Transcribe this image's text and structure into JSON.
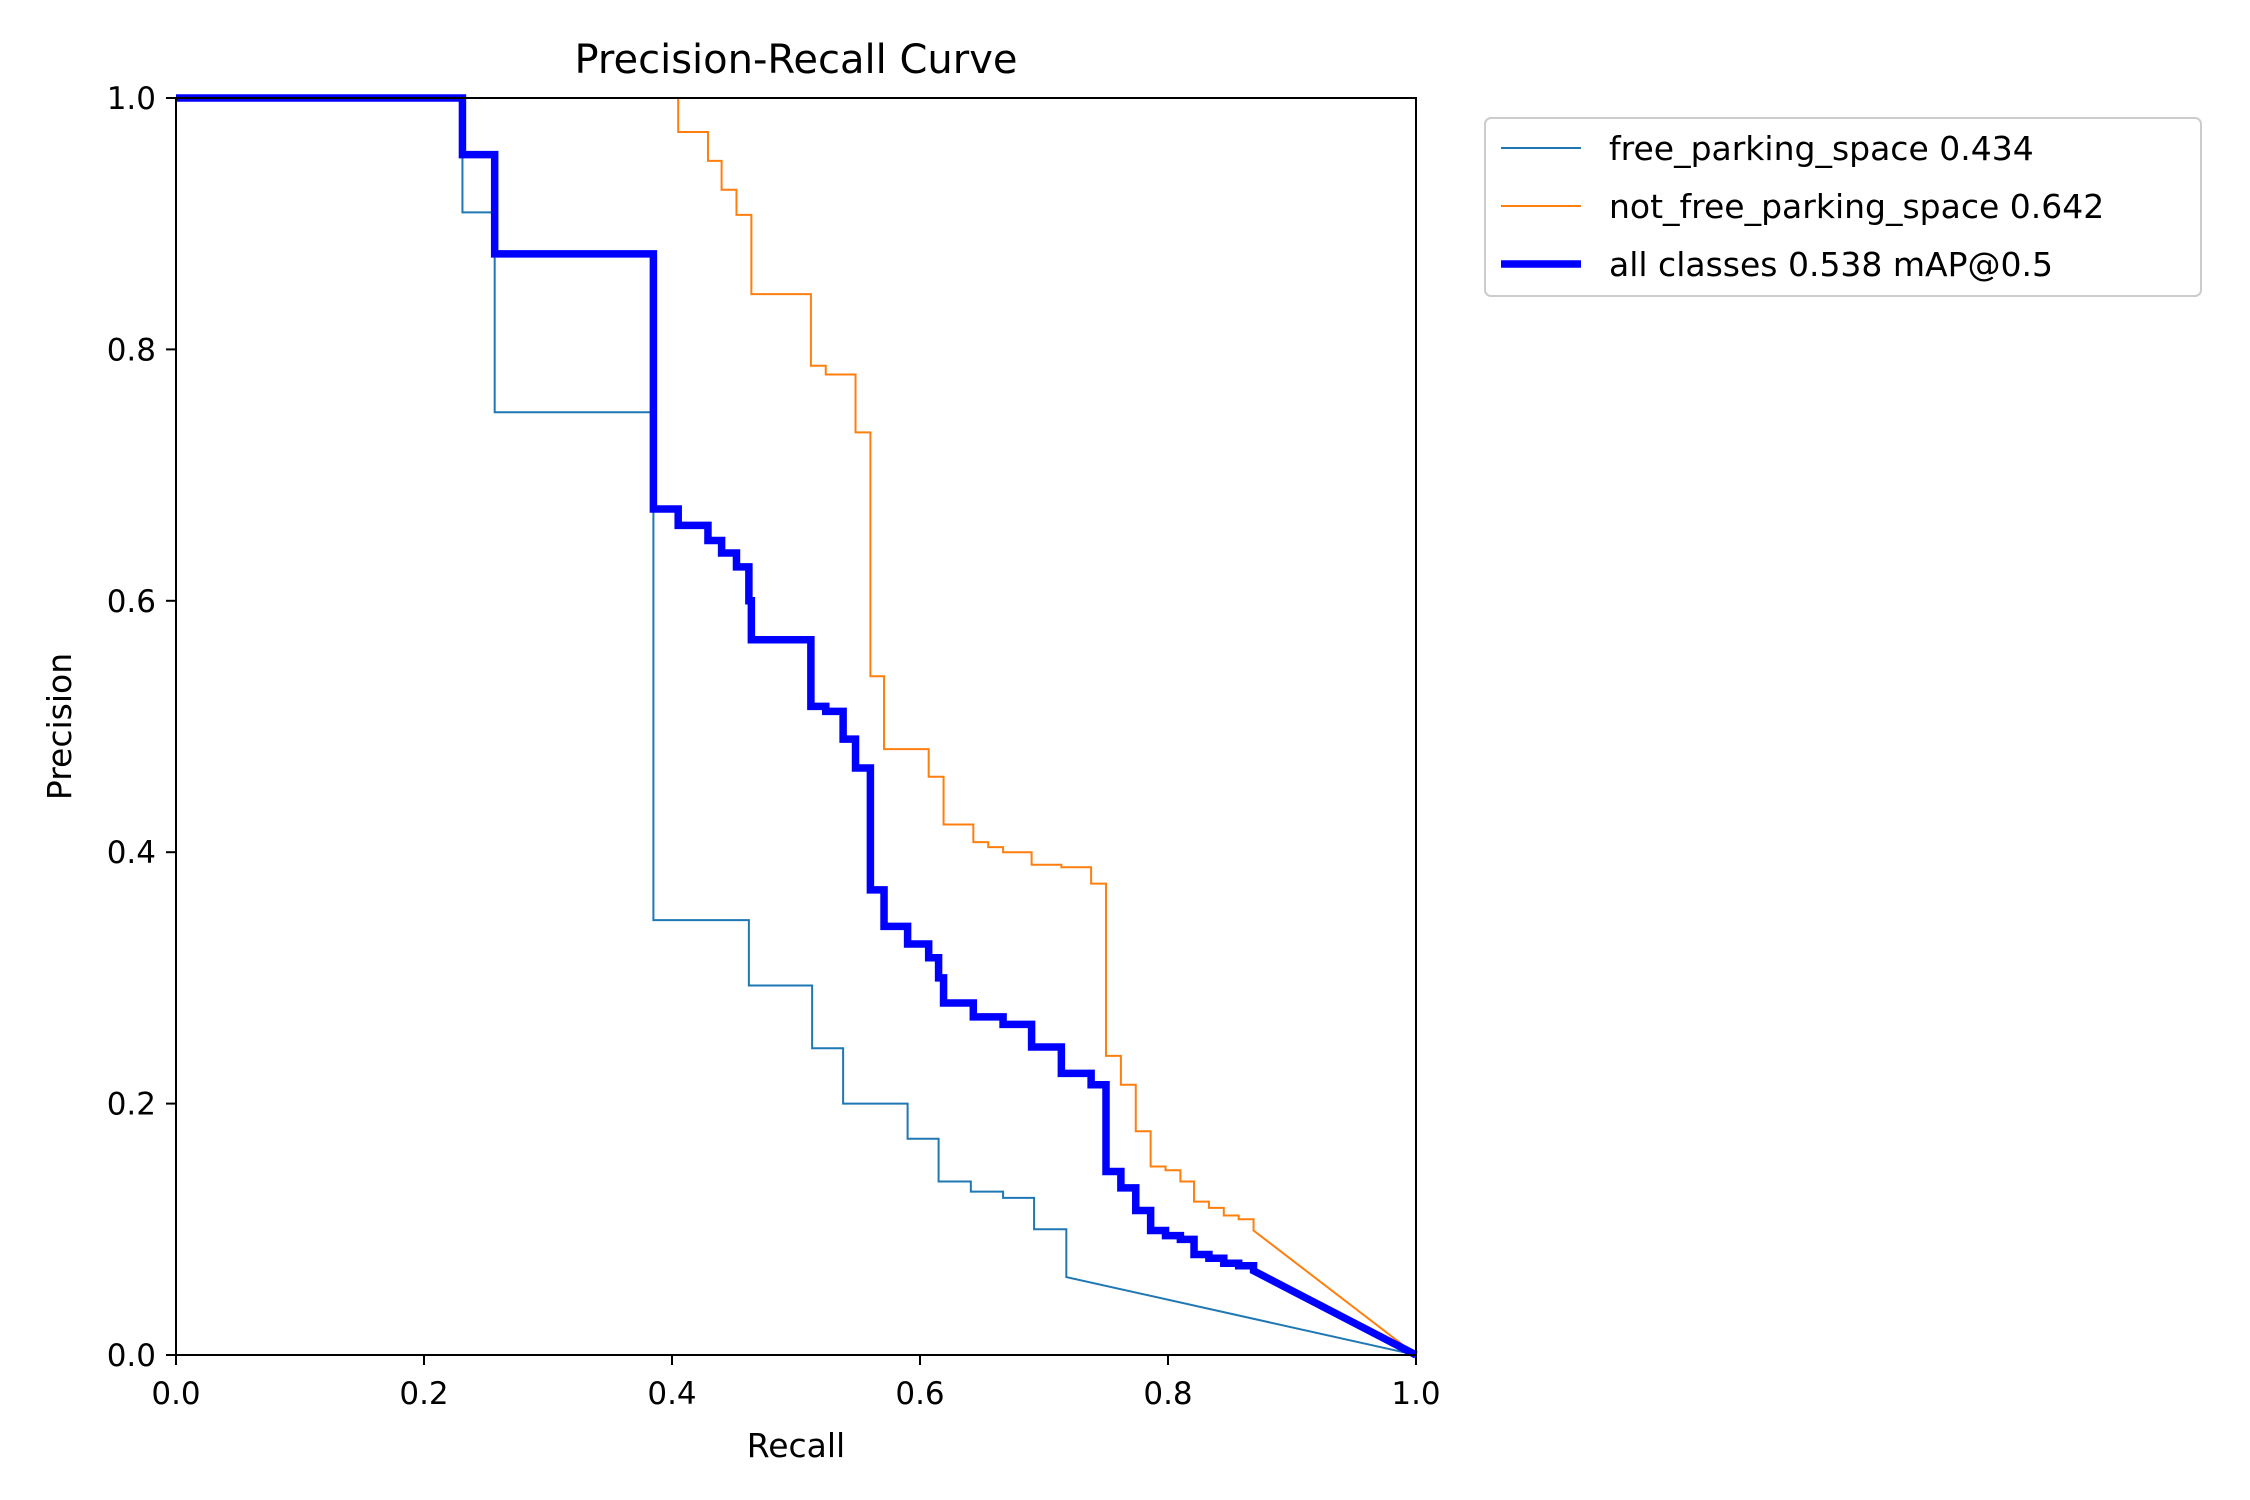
{
  "chart_data": {
    "type": "line",
    "title": "Precision-Recall Curve",
    "xlabel": "Recall",
    "ylabel": "Precision",
    "xlim": [
      0,
      1
    ],
    "ylim": [
      0,
      1
    ],
    "xticks": [
      "0.0",
      "0.2",
      "0.4",
      "0.6",
      "0.8",
      "1.0"
    ],
    "yticks": [
      "0.0",
      "0.2",
      "0.4",
      "0.6",
      "0.8",
      "1.0"
    ],
    "grid": false,
    "legend_position": "outside-top-right",
    "series": [
      {
        "name": "free_parking_space 0.434",
        "color": "#1f77b4",
        "width": "thin",
        "step": true,
        "points": [
          [
            0,
            1.0
          ],
          [
            0.231,
            1.0
          ],
          [
            0.231,
            0.909
          ],
          [
            0.257,
            0.909
          ],
          [
            0.257,
            0.75
          ],
          [
            0.385,
            0.75
          ],
          [
            0.385,
            0.346
          ],
          [
            0.462,
            0.346
          ],
          [
            0.462,
            0.294
          ],
          [
            0.513,
            0.294
          ],
          [
            0.513,
            0.244
          ],
          [
            0.538,
            0.244
          ],
          [
            0.538,
            0.2
          ],
          [
            0.59,
            0.2
          ],
          [
            0.59,
            0.172
          ],
          [
            0.615,
            0.172
          ],
          [
            0.615,
            0.138
          ],
          [
            0.641,
            0.138
          ],
          [
            0.641,
            0.13
          ],
          [
            0.667,
            0.13
          ],
          [
            0.667,
            0.125
          ],
          [
            0.692,
            0.125
          ],
          [
            0.692,
            0.1
          ],
          [
            0.718,
            0.1
          ],
          [
            0.718,
            0.062
          ],
          [
            1.0,
            0.0
          ]
        ]
      },
      {
        "name": "not_free_parking_space 0.642",
        "color": "#ff7f0e",
        "width": "thin",
        "step": true,
        "points": [
          [
            0.405,
            1.0
          ],
          [
            0.405,
            0.973
          ],
          [
            0.429,
            0.973
          ],
          [
            0.429,
            0.95
          ],
          [
            0.44,
            0.95
          ],
          [
            0.44,
            0.927
          ],
          [
            0.452,
            0.927
          ],
          [
            0.452,
            0.907
          ],
          [
            0.464,
            0.907
          ],
          [
            0.464,
            0.844
          ],
          [
            0.512,
            0.844
          ],
          [
            0.512,
            0.787
          ],
          [
            0.524,
            0.787
          ],
          [
            0.524,
            0.78
          ],
          [
            0.548,
            0.78
          ],
          [
            0.548,
            0.734
          ],
          [
            0.56,
            0.734
          ],
          [
            0.56,
            0.54
          ],
          [
            0.571,
            0.54
          ],
          [
            0.571,
            0.482
          ],
          [
            0.607,
            0.482
          ],
          [
            0.607,
            0.46
          ],
          [
            0.619,
            0.46
          ],
          [
            0.619,
            0.422
          ],
          [
            0.643,
            0.422
          ],
          [
            0.643,
            0.408
          ],
          [
            0.655,
            0.408
          ],
          [
            0.655,
            0.404
          ],
          [
            0.667,
            0.404
          ],
          [
            0.667,
            0.4
          ],
          [
            0.69,
            0.4
          ],
          [
            0.69,
            0.39
          ],
          [
            0.714,
            0.39
          ],
          [
            0.714,
            0.388
          ],
          [
            0.738,
            0.388
          ],
          [
            0.738,
            0.375
          ],
          [
            0.75,
            0.375
          ],
          [
            0.75,
            0.238
          ],
          [
            0.762,
            0.238
          ],
          [
            0.762,
            0.215
          ],
          [
            0.774,
            0.215
          ],
          [
            0.774,
            0.178
          ],
          [
            0.786,
            0.178
          ],
          [
            0.786,
            0.15
          ],
          [
            0.798,
            0.15
          ],
          [
            0.798,
            0.147
          ],
          [
            0.81,
            0.147
          ],
          [
            0.81,
            0.138
          ],
          [
            0.821,
            0.138
          ],
          [
            0.821,
            0.122
          ],
          [
            0.833,
            0.122
          ],
          [
            0.833,
            0.117
          ],
          [
            0.845,
            0.117
          ],
          [
            0.845,
            0.111
          ],
          [
            0.857,
            0.111
          ],
          [
            0.857,
            0.108
          ],
          [
            0.869,
            0.108
          ],
          [
            0.869,
            0.099
          ],
          [
            1.0,
            0.0
          ]
        ]
      },
      {
        "name": "all classes 0.538 mAP@0.5",
        "color": "#0000ff",
        "width": "thick",
        "step": true,
        "points": [
          [
            0,
            1.0
          ],
          [
            0.231,
            1.0
          ],
          [
            0.231,
            0.955
          ],
          [
            0.257,
            0.955
          ],
          [
            0.257,
            0.876
          ],
          [
            0.385,
            0.876
          ],
          [
            0.385,
            0.673
          ],
          [
            0.405,
            0.673
          ],
          [
            0.405,
            0.66
          ],
          [
            0.429,
            0.66
          ],
          [
            0.429,
            0.648
          ],
          [
            0.44,
            0.648
          ],
          [
            0.44,
            0.638
          ],
          [
            0.452,
            0.638
          ],
          [
            0.452,
            0.627
          ],
          [
            0.462,
            0.627
          ],
          [
            0.462,
            0.6
          ],
          [
            0.464,
            0.6
          ],
          [
            0.464,
            0.569
          ],
          [
            0.512,
            0.569
          ],
          [
            0.512,
            0.516
          ],
          [
            0.524,
            0.516
          ],
          [
            0.524,
            0.512
          ],
          [
            0.538,
            0.512
          ],
          [
            0.538,
            0.49
          ],
          [
            0.548,
            0.49
          ],
          [
            0.548,
            0.467
          ],
          [
            0.56,
            0.467
          ],
          [
            0.56,
            0.37
          ],
          [
            0.571,
            0.37
          ],
          [
            0.571,
            0.341
          ],
          [
            0.59,
            0.341
          ],
          [
            0.59,
            0.327
          ],
          [
            0.607,
            0.327
          ],
          [
            0.607,
            0.316
          ],
          [
            0.615,
            0.316
          ],
          [
            0.615,
            0.3
          ],
          [
            0.619,
            0.3
          ],
          [
            0.619,
            0.28
          ],
          [
            0.643,
            0.28
          ],
          [
            0.643,
            0.269
          ],
          [
            0.667,
            0.269
          ],
          [
            0.667,
            0.263
          ],
          [
            0.69,
            0.263
          ],
          [
            0.69,
            0.245
          ],
          [
            0.714,
            0.245
          ],
          [
            0.714,
            0.224
          ],
          [
            0.738,
            0.224
          ],
          [
            0.738,
            0.215
          ],
          [
            0.75,
            0.215
          ],
          [
            0.75,
            0.146
          ],
          [
            0.762,
            0.146
          ],
          [
            0.762,
            0.133
          ],
          [
            0.774,
            0.133
          ],
          [
            0.774,
            0.115
          ],
          [
            0.786,
            0.115
          ],
          [
            0.786,
            0.099
          ],
          [
            0.798,
            0.099
          ],
          [
            0.798,
            0.095
          ],
          [
            0.81,
            0.095
          ],
          [
            0.81,
            0.092
          ],
          [
            0.821,
            0.092
          ],
          [
            0.821,
            0.08
          ],
          [
            0.833,
            0.08
          ],
          [
            0.833,
            0.077
          ],
          [
            0.845,
            0.077
          ],
          [
            0.845,
            0.073
          ],
          [
            0.857,
            0.073
          ],
          [
            0.857,
            0.071
          ],
          [
            0.869,
            0.071
          ],
          [
            0.869,
            0.067
          ],
          [
            1.0,
            0.0
          ]
        ]
      }
    ]
  }
}
